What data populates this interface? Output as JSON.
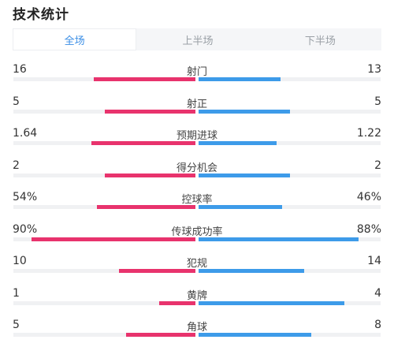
{
  "title": "技术统计",
  "tabs": [
    {
      "label": "全场",
      "active": true
    },
    {
      "label": "上半场",
      "active": false
    },
    {
      "label": "下半场",
      "active": false
    }
  ],
  "colors": {
    "home": "#e8336d",
    "away": "#3d9be9",
    "active_tab": "#3a8ee6"
  },
  "stats": [
    {
      "label": "射门",
      "home": "16",
      "away": "13",
      "home_fill": 0.56,
      "away_fill": 0.45
    },
    {
      "label": "射正",
      "home": "5",
      "away": "5",
      "home_fill": 0.5,
      "away_fill": 0.5
    },
    {
      "label": "预期进球",
      "home": "1.64",
      "away": "1.22",
      "home_fill": 0.57,
      "away_fill": 0.43
    },
    {
      "label": "得分机会",
      "home": "2",
      "away": "2",
      "home_fill": 0.5,
      "away_fill": 0.5
    },
    {
      "label": "控球率",
      "home": "54%",
      "away": "46%",
      "home_fill": 0.54,
      "away_fill": 0.46
    },
    {
      "label": "传球成功率",
      "home": "90%",
      "away": "88%",
      "home_fill": 0.9,
      "away_fill": 0.88
    },
    {
      "label": "犯规",
      "home": "10",
      "away": "14",
      "home_fill": 0.42,
      "away_fill": 0.58
    },
    {
      "label": "黄牌",
      "home": "1",
      "away": "4",
      "home_fill": 0.2,
      "away_fill": 0.8
    },
    {
      "label": "角球",
      "home": "5",
      "away": "8",
      "home_fill": 0.38,
      "away_fill": 0.62
    }
  ]
}
